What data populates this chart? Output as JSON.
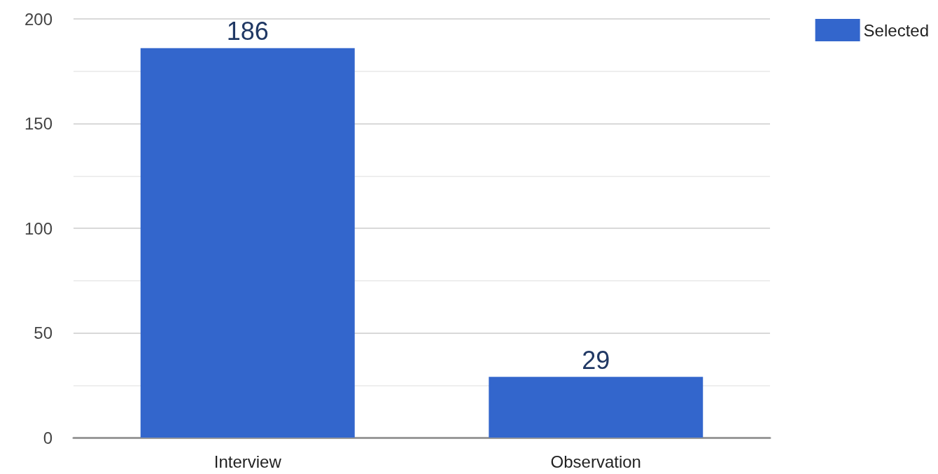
{
  "chart_data": {
    "type": "bar",
    "categories": [
      "Interview",
      "Observation"
    ],
    "series": [
      {
        "name": "Selected",
        "color": "#3366cc",
        "values": [
          186,
          29
        ]
      }
    ],
    "ylim": [
      0,
      200
    ],
    "yticks": [
      0,
      50,
      100,
      150,
      200
    ],
    "grid": "y",
    "legend": "top right",
    "data_labels": true
  }
}
